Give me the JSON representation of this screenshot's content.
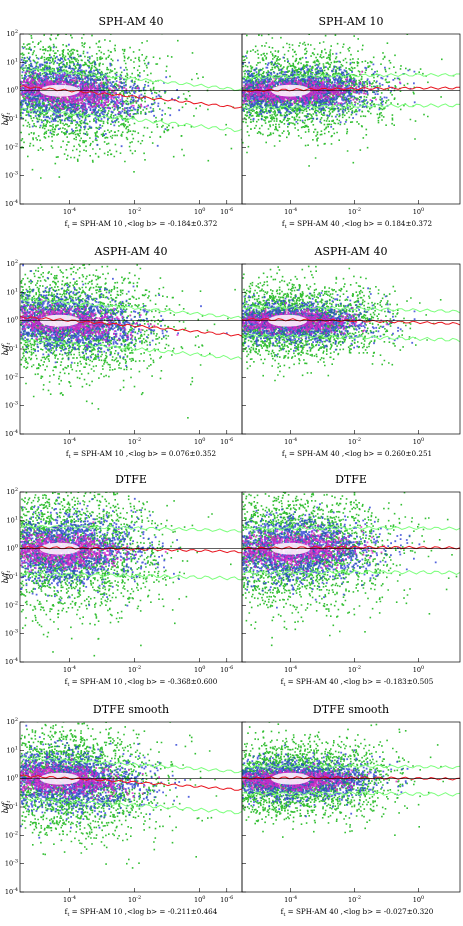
{
  "colors": {
    "cloud_outer": "#1db81d",
    "cloud_mid": "#2b3fd6",
    "cloud_inner": "#e020c8",
    "core": "#ffffff",
    "median_line": "#e8141e",
    "percentile_line": "#7dff7d",
    "ref_line": "#000000"
  },
  "chart_data": [
    {
      "type": "scatter",
      "density": true,
      "row": 0,
      "col": 0,
      "title": "SPH-AM 40",
      "ylabel": "b/f_t",
      "subtitle": "f_t = SPH-AM 10 ,<log b> = -0.184±0.372",
      "xscale": "log",
      "yscale": "log",
      "xlim": [
        3e-06,
        20
      ],
      "ylim": [
        0.0001,
        100
      ],
      "xticklabels": [
        "10^-4",
        "10^-2",
        "10^0"
      ],
      "yticklabels": [
        "10^-4",
        "10^-3",
        "10^-2",
        "10^-1",
        "10^0",
        "10^1",
        "10^2"
      ],
      "reference_line_y": 1,
      "slope": -0.4,
      "spread": 0.6,
      "peak_x": 5e-05
    },
    {
      "type": "scatter",
      "density": true,
      "row": 0,
      "col": 1,
      "title": "SPH-AM 10",
      "subtitle": "f_t = SPH-AM 40 ,<log b> = 0.184±0.372",
      "xscale": "log",
      "yscale": "log",
      "xlim": [
        3e-06,
        20
      ],
      "ylim": [
        0.0001,
        100
      ],
      "xticklabels": [
        "10^-6",
        "10^-4",
        "10^-2",
        "10^0"
      ],
      "reference_line_y": 1,
      "slope": 0.1,
      "spread": 0.45,
      "peak_x": 0.0001
    },
    {
      "type": "scatter",
      "density": true,
      "row": 1,
      "col": 0,
      "title": "ASPH-AM 40",
      "ylabel": "b/f_t",
      "subtitle": "f_t = SPH-AM 10 ,<log b> = 0.076±0.352",
      "xscale": "log",
      "yscale": "log",
      "xlim": [
        3e-06,
        20
      ],
      "ylim": [
        0.0001,
        100
      ],
      "xticklabels": [
        "10^-4",
        "10^-2",
        "10^0"
      ],
      "yticklabels": [
        "10^-4",
        "10^-3",
        "10^-2",
        "10^-1",
        "10^0",
        "10^1",
        "10^2"
      ],
      "reference_line_y": 1,
      "slope": -0.35,
      "spread": 0.6,
      "peak_x": 5e-05
    },
    {
      "type": "scatter",
      "density": true,
      "row": 1,
      "col": 1,
      "title": "ASPH-AM 40",
      "subtitle": "f_t = SPH-AM 40 ,<log b> = 0.260±0.251",
      "xscale": "log",
      "yscale": "log",
      "xlim": [
        3e-06,
        20
      ],
      "ylim": [
        0.0001,
        100
      ],
      "xticklabels": [
        "10^-6",
        "10^-4",
        "10^-2",
        "10^0"
      ],
      "reference_line_y": 1,
      "slope": -0.05,
      "spread": 0.42,
      "peak_x": 8e-05
    },
    {
      "type": "scatter",
      "density": true,
      "row": 2,
      "col": 0,
      "title": "DTFE",
      "ylabel": "b/f_t",
      "subtitle": "f_t = SPH-AM 10 ,<log b> = -0.368±0.600",
      "xscale": "log",
      "yscale": "log",
      "xlim": [
        3e-06,
        20
      ],
      "ylim": [
        0.0001,
        100
      ],
      "xticklabels": [
        "10^-4",
        "10^-2",
        "10^0"
      ],
      "yticklabels": [
        "10^-4",
        "10^-3",
        "10^-2",
        "10^-1",
        "10^0",
        "10^1",
        "10^2"
      ],
      "reference_line_y": 1,
      "slope": -0.05,
      "spread": 0.7,
      "peak_x": 5e-05
    },
    {
      "type": "scatter",
      "density": true,
      "row": 2,
      "col": 1,
      "title": "DTFE",
      "subtitle": "f_t = SPH-AM 40 ,<log b> = -0.183±0.505",
      "xscale": "log",
      "yscale": "log",
      "xlim": [
        3e-06,
        20
      ],
      "ylim": [
        0.0001,
        100
      ],
      "xticklabels": [
        "10^-6",
        "10^-4",
        "10^-2",
        "10^0"
      ],
      "reference_line_y": 1,
      "slope": 0.05,
      "spread": 0.65,
      "peak_x": 0.0001
    },
    {
      "type": "scatter",
      "density": true,
      "row": 3,
      "col": 0,
      "title": "DTFE smooth",
      "ylabel": "b/f_t",
      "subtitle": "f_t = SPH-AM 10 ,<log b> = -0.211±0.464",
      "xscale": "log",
      "yscale": "log",
      "xlim": [
        3e-06,
        20
      ],
      "ylim": [
        0.0001,
        100
      ],
      "xticklabels": [
        "10^-4",
        "10^-2",
        "10^0"
      ],
      "yticklabels": [
        "10^-4",
        "10^-3",
        "10^-2",
        "10^-1",
        "10^0",
        "10^1",
        "10^2"
      ],
      "reference_line_y": 1,
      "slope": -0.25,
      "spread": 0.6,
      "peak_x": 5e-05
    },
    {
      "type": "scatter",
      "density": true,
      "row": 3,
      "col": 1,
      "title": "DTFE smooth",
      "subtitle": "f_t = SPH-AM 40 ,<log b> = -0.027±0.320",
      "xscale": "log",
      "yscale": "log",
      "xlim": [
        3e-06,
        20
      ],
      "ylim": [
        0.0001,
        100
      ],
      "xticklabels": [
        "10^-6",
        "10^-4",
        "10^-2",
        "10^0"
      ],
      "reference_line_y": 1,
      "slope": 0.02,
      "spread": 0.4,
      "peak_x": 0.0001
    }
  ]
}
